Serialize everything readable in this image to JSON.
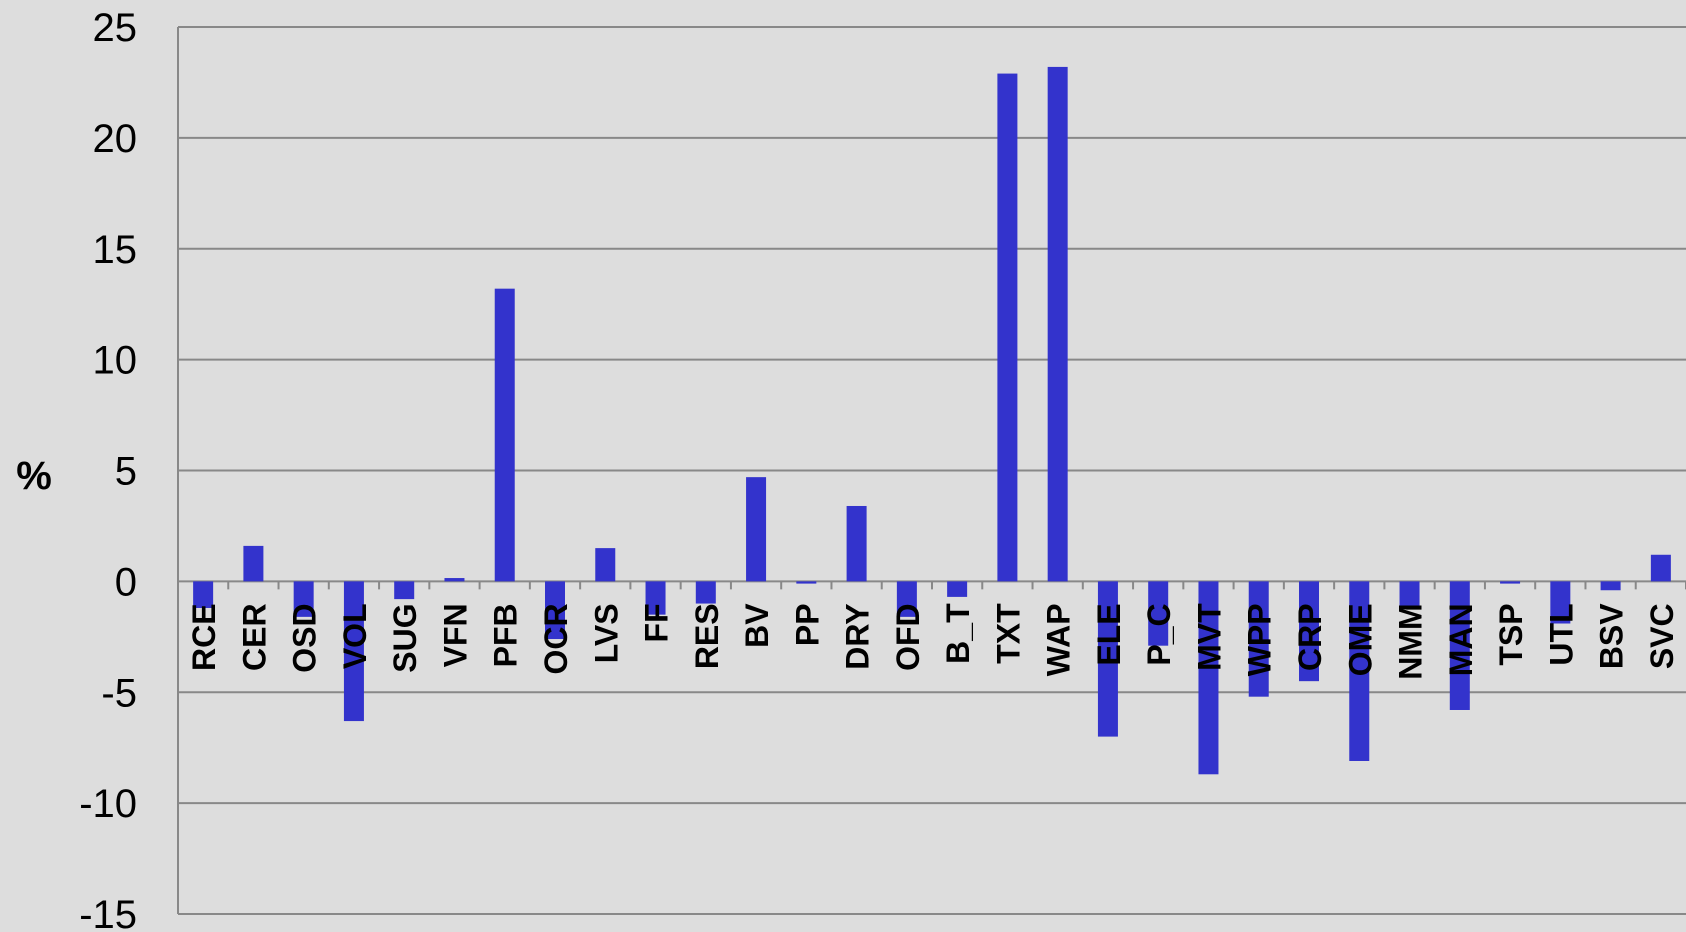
{
  "chart_data": {
    "type": "bar",
    "title": "",
    "xlabel": "",
    "ylabel": "%",
    "ylim": [
      -15,
      25
    ],
    "yticks": [
      -15,
      -10,
      -5,
      0,
      5,
      10,
      15,
      20,
      25
    ],
    "grid": true,
    "bar_color": "#3333cc",
    "background_color": "#dddddd",
    "grid_color": "#888888",
    "categories": [
      "RCE",
      "CER",
      "OSD",
      "VOL",
      "SUG",
      "VFN",
      "PFB",
      "OCR",
      "LVS",
      "FF",
      "RES",
      "BV",
      "PP",
      "DRY",
      "OFD",
      "B_T",
      "TXT",
      "WAP",
      "ELE",
      "P_C",
      "MVT",
      "WPP",
      "CRP",
      "OME",
      "NMM",
      "MAN",
      "TSP",
      "UTL",
      "BSV",
      "SVC"
    ],
    "series": [
      {
        "values": [
          -1.2,
          1.6,
          -1.6,
          -6.3,
          -0.8,
          0.15,
          13.2,
          -2.6,
          1.5,
          -1.5,
          -1.0,
          4.7,
          -0.1,
          3.4,
          -1.6,
          -0.7,
          22.9,
          23.2,
          -7.0,
          -2.9,
          -8.7,
          -5.2,
          -4.5,
          -8.1,
          -1.2,
          -5.8,
          -0.1,
          -1.9,
          -0.4,
          1.2
        ]
      }
    ]
  }
}
